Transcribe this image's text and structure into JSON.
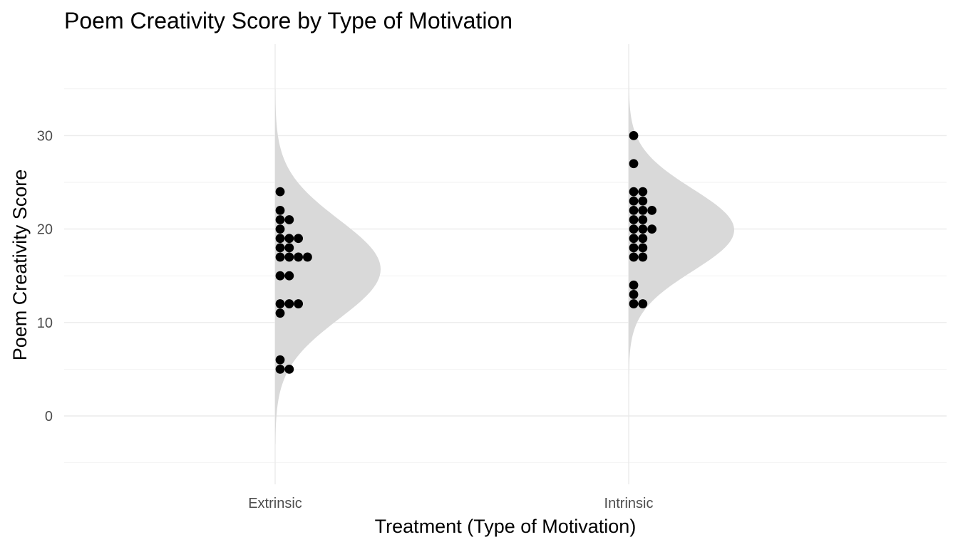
{
  "chart_data": {
    "type": "scatter",
    "subtype": "half-violin with stacked dot plot (raincloud)",
    "title": "Poem Creativity Score by Type of Motivation",
    "xlabel": "Treatment (Type of Motivation)",
    "ylabel": "Poem Creativity Score",
    "categories": [
      "Extrinsic",
      "Intrinsic"
    ],
    "ylim": [
      -5,
      38
    ],
    "yticks": [
      0,
      10,
      20,
      30
    ],
    "grid": true,
    "legend": "none",
    "colors": {
      "points": "#000000",
      "density": "#d9d9d9",
      "grid": "#ebebeb"
    },
    "series": [
      {
        "group": "Extrinsic",
        "values": [
          24,
          22,
          21,
          21,
          20,
          19,
          19,
          19,
          18,
          18,
          17,
          17,
          17,
          17,
          15,
          15,
          12,
          12,
          12,
          11,
          6,
          5,
          5
        ],
        "density_mean": 15.7,
        "density_sd": 5.3,
        "density_range": [
          -3,
          35
        ]
      },
      {
        "group": "Intrinsic",
        "values": [
          30,
          27,
          24,
          24,
          23,
          23,
          22,
          22,
          22,
          21,
          21,
          20,
          20,
          20,
          19,
          19,
          18,
          18,
          17,
          17,
          14,
          13,
          12,
          12
        ],
        "density_mean": 19.9,
        "density_sd": 4.4,
        "density_range": [
          3,
          37
        ]
      }
    ]
  }
}
